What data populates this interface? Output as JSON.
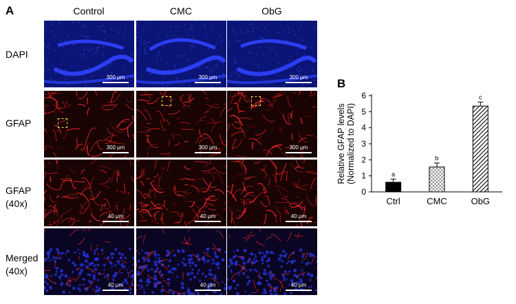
{
  "figure": {
    "panel_a_label": "A",
    "panel_b_label": "B",
    "columns": [
      "Control",
      "CMC",
      "ObG"
    ],
    "rows": [
      {
        "label": "DAPI",
        "scale": "300 μm"
      },
      {
        "label": "GFAP",
        "scale": "300 μm"
      },
      {
        "label": "GFAP\n(40x)",
        "scale": "40 μm"
      },
      {
        "label": "Merged\n(40x)",
        "scale": "40 μm"
      }
    ]
  },
  "colors": {
    "dapi_bg": "#0b1577",
    "dapi_band": "#2b3ef2",
    "gfap_bg": "#1a0303",
    "gfap_fiber": "#ff2a2a",
    "zoom_box": "#f5e24b"
  },
  "chart_data": {
    "type": "bar",
    "title": "",
    "ylabel": "Relative GFAP levels\n(Normalized to DAPI)",
    "xlabel": "",
    "categories": [
      "Ctrl",
      "CMC",
      "ObG"
    ],
    "values": [
      0.6,
      1.55,
      5.35
    ],
    "errors": [
      0.2,
      0.25,
      0.25
    ],
    "significance": [
      "a",
      "b",
      "c"
    ],
    "ylim": [
      0,
      6
    ],
    "yticks": [
      0,
      1,
      2,
      3,
      4,
      5,
      6
    ],
    "fills": [
      "solid-black",
      "crosshatch",
      "diagonal-hatch"
    ],
    "grid": false
  }
}
